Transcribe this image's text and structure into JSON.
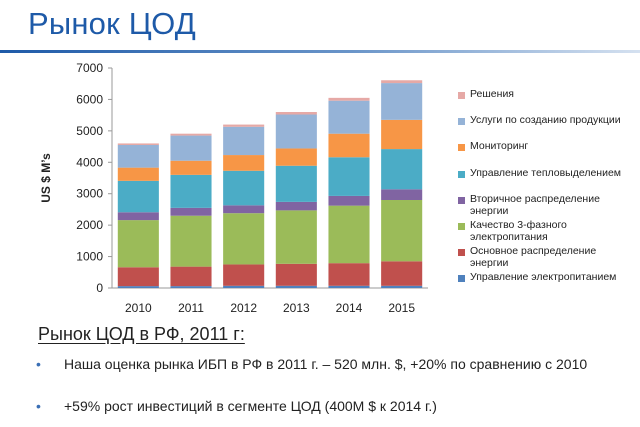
{
  "page": {
    "title": "Рынок ЦОД"
  },
  "chart_data": {
    "type": "bar",
    "stacked": true,
    "categories": [
      "2010",
      "2011",
      "2012",
      "2013",
      "2014",
      "2015"
    ],
    "ylabel": "US $ M’s",
    "xlabel": "",
    "title": "",
    "ylim": [
      0,
      7000
    ],
    "yticks": [
      0,
      1000,
      2000,
      3000,
      4000,
      5000,
      6000,
      7000
    ],
    "grid": false,
    "legend_position": "right",
    "series": [
      {
        "name": "Управление электропитанием",
        "color": "#4f81bd",
        "values": [
          60,
          60,
          70,
          70,
          70,
          70
        ]
      },
      {
        "name": "Основное распределение энергии",
        "color": "#c0504d",
        "values": [
          600,
          620,
          680,
          700,
          720,
          780
        ]
      },
      {
        "name": "Качество 3-фазного электропитания",
        "color": "#9bbb59",
        "values": [
          1500,
          1620,
          1630,
          1700,
          1830,
          1950
        ]
      },
      {
        "name": "Вторичное распределение энергии",
        "color": "#8064a2",
        "values": [
          250,
          250,
          250,
          270,
          310,
          340
        ]
      },
      {
        "name": "Управление тепловыделением",
        "color": "#4bacc6",
        "values": [
          1000,
          1050,
          1100,
          1150,
          1230,
          1280
        ]
      },
      {
        "name": "Мониторинг",
        "color": "#f79646",
        "values": [
          420,
          450,
          500,
          550,
          750,
          930
        ]
      },
      {
        "name": "Услуги по созданию продукции",
        "color": "#95b3d7",
        "values": [
          720,
          800,
          900,
          1080,
          1050,
          1170
        ]
      },
      {
        "name": "Решения",
        "color": "#e6a9a6",
        "values": [
          50,
          60,
          70,
          80,
          90,
          90
        ]
      }
    ]
  },
  "summary": {
    "heading": "Рынок ЦОД в РФ, 2011 г:",
    "bullet_symbol": "•",
    "bullets": [
      "Наша оценка рынка ИБП в РФ в 2011 г. – 520 млн. $, +20% по сравнению с 2010",
      "+59% рост инвестиций в сегменте ЦОД (400M $ к 2014 г.)"
    ]
  }
}
